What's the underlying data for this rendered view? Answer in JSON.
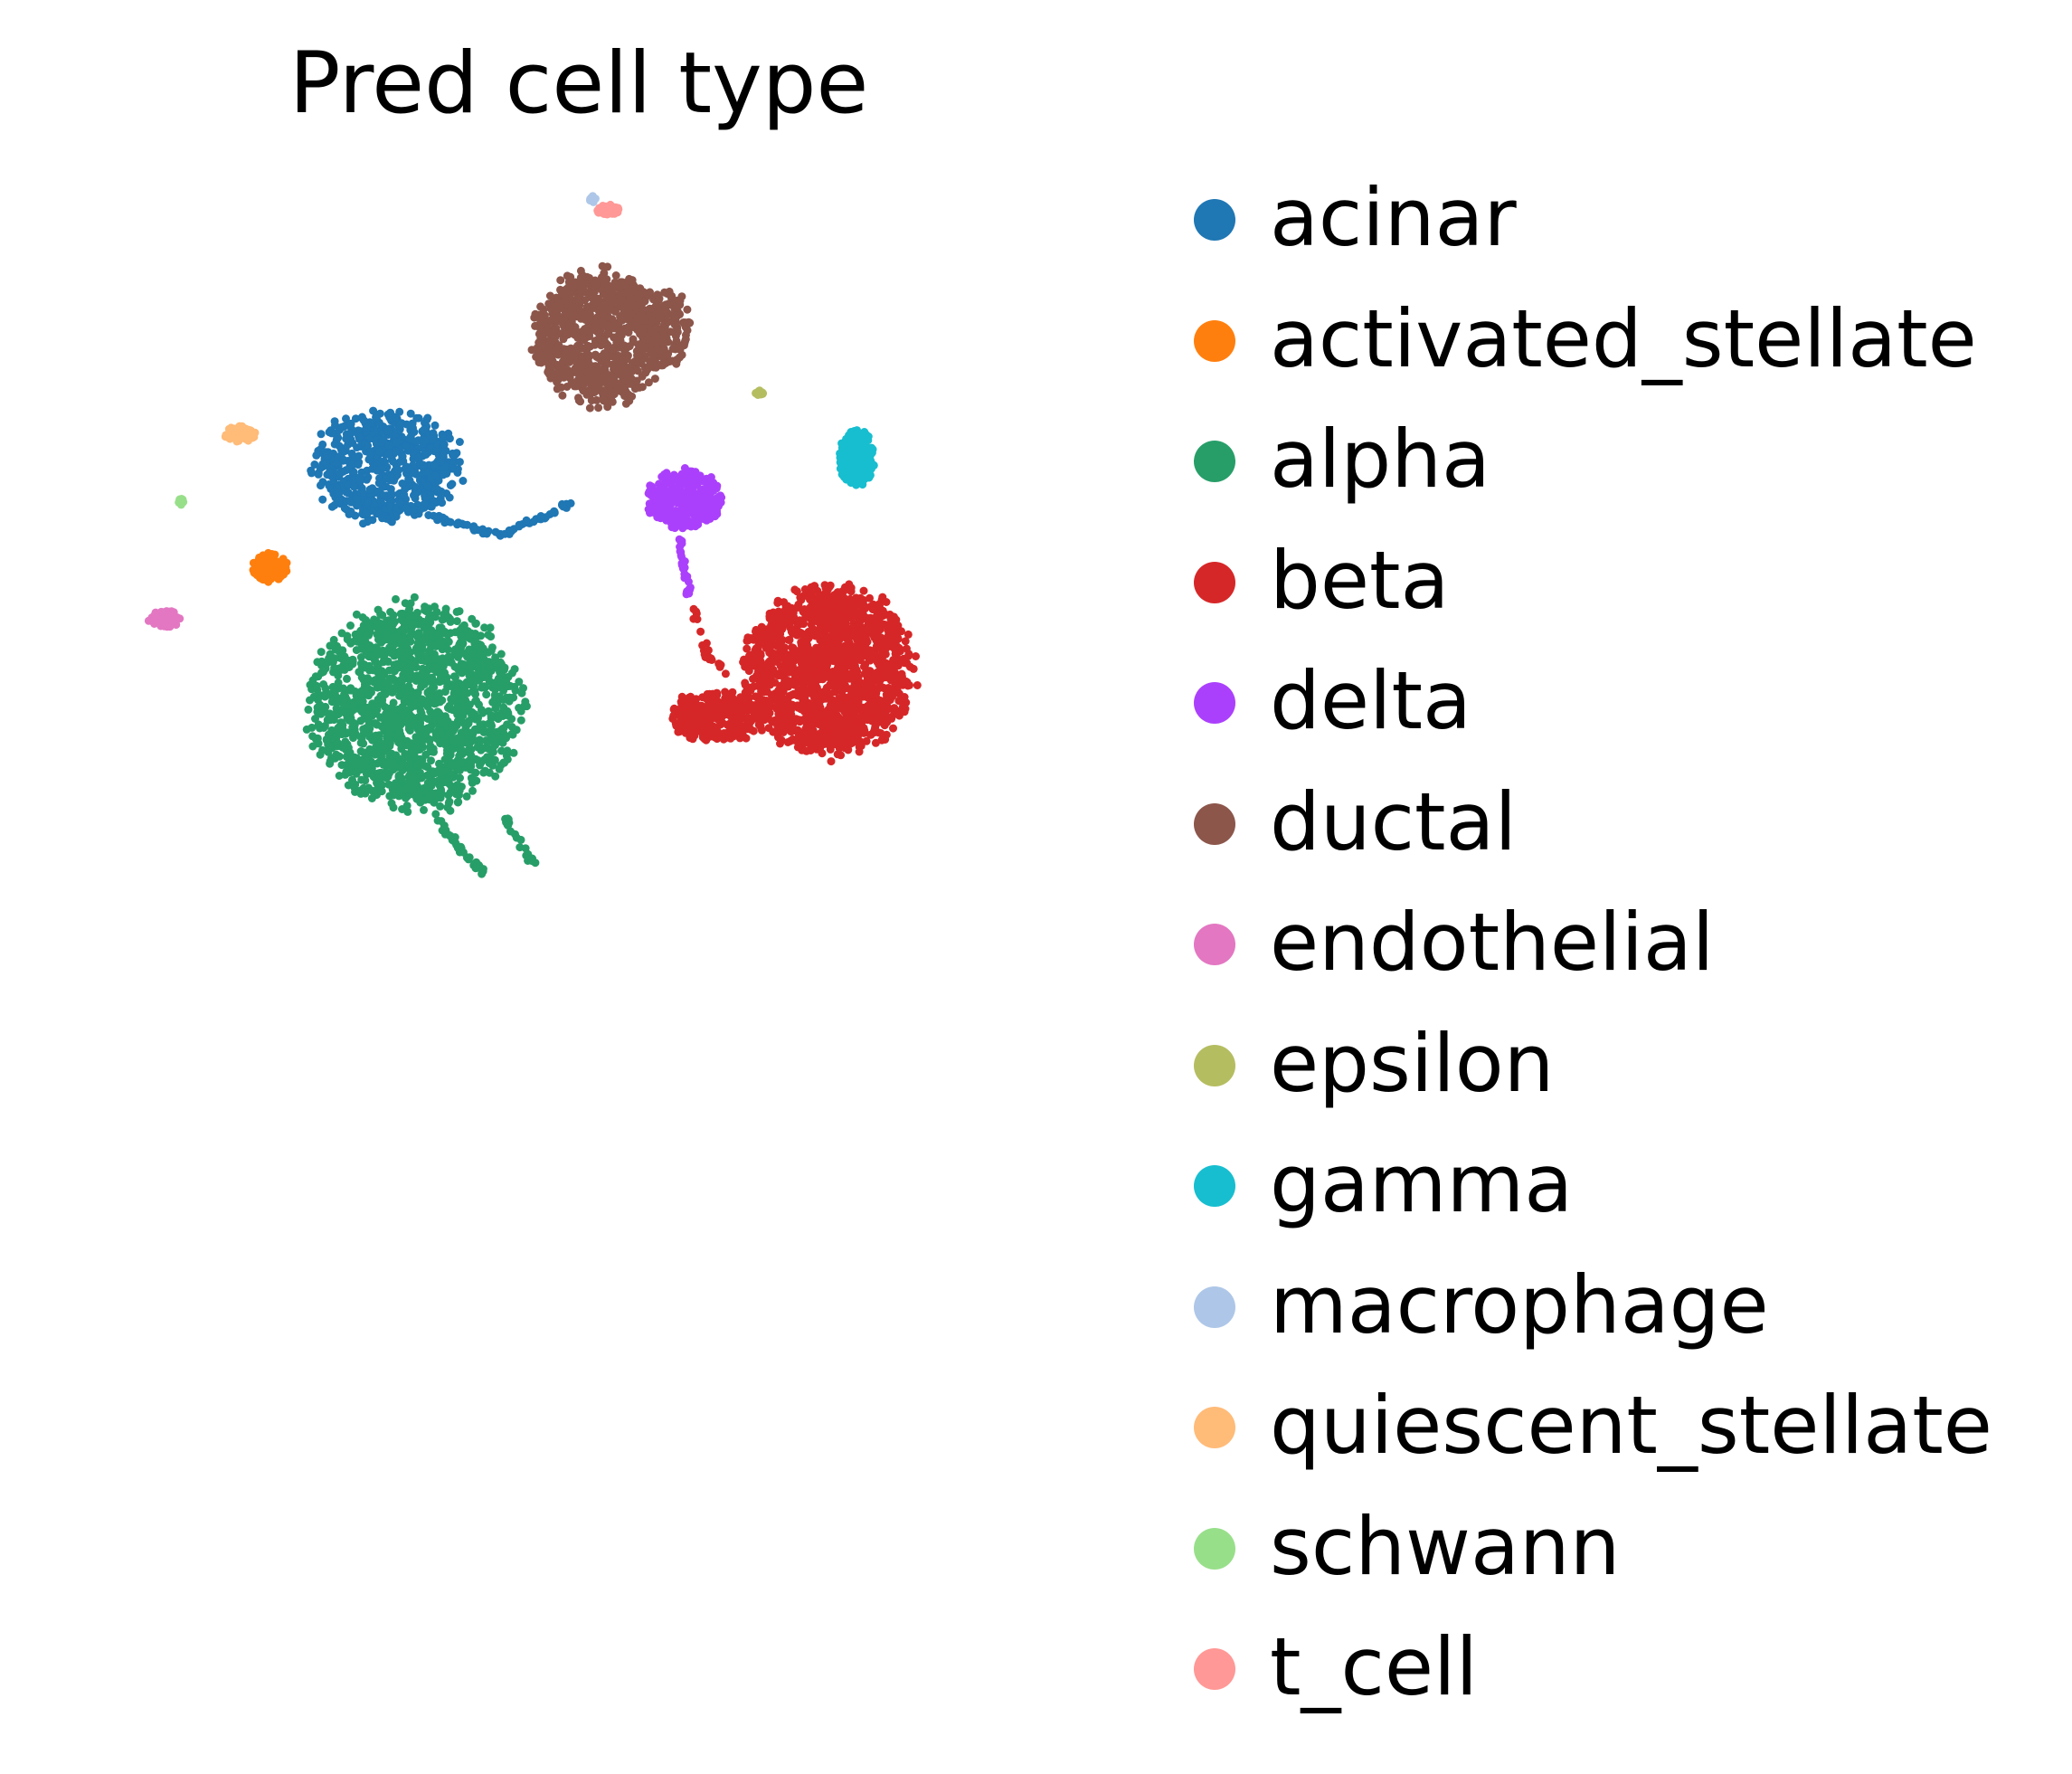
{
  "chart_data": {
    "type": "scatter",
    "title": "Pred cell type",
    "xlabel": "",
    "ylabel": "",
    "axes_visible": false,
    "grid": false,
    "legend_placement": "right",
    "xlim": [
      0,
      10
    ],
    "ylim": [
      0,
      10
    ],
    "series": [
      {
        "name": "acinar",
        "color": "#1f77b4",
        "clusters": [
          {
            "shape": "blob",
            "cx": 3.0,
            "cy": 7.1,
            "rx": 0.85,
            "ry": 0.65,
            "n": 650
          },
          {
            "shape": "arc",
            "points": [
              [
                3.5,
                6.55
              ],
              [
                4.2,
                6.35
              ],
              [
                4.9,
                6.7
              ]
            ],
            "n": 60
          }
        ]
      },
      {
        "name": "activated_stellate",
        "color": "#ff7f0e",
        "clusters": [
          {
            "shape": "blob",
            "cx": 1.78,
            "cy": 6.0,
            "rx": 0.2,
            "ry": 0.17,
            "n": 120
          }
        ]
      },
      {
        "name": "alpha",
        "color": "#279e68",
        "clusters": [
          {
            "shape": "blob",
            "cx": 3.3,
            "cy": 4.5,
            "rx": 1.2,
            "ry": 1.2,
            "n": 1600
          },
          {
            "shape": "arc",
            "points": [
              [
                3.5,
                3.3
              ],
              [
                3.8,
                2.9
              ],
              [
                4.0,
                2.7
              ]
            ],
            "n": 40
          },
          {
            "shape": "arc",
            "points": [
              [
                4.2,
                3.35
              ],
              [
                4.55,
                2.75
              ]
            ],
            "n": 20
          }
        ]
      },
      {
        "name": "beta",
        "color": "#d62728",
        "clusters": [
          {
            "shape": "blob",
            "cx": 7.6,
            "cy": 4.9,
            "rx": 0.95,
            "ry": 1.0,
            "n": 1500
          },
          {
            "shape": "blob",
            "cx": 6.45,
            "cy": 4.4,
            "rx": 0.55,
            "ry": 0.3,
            "n": 300
          },
          {
            "shape": "arc",
            "points": [
              [
                6.2,
                5.55
              ],
              [
                6.35,
                5.05
              ],
              [
                6.55,
                4.85
              ]
            ],
            "n": 25
          }
        ]
      },
      {
        "name": "delta",
        "color": "#ab40fc",
        "clusters": [
          {
            "shape": "blob",
            "cx": 6.1,
            "cy": 6.75,
            "rx": 0.42,
            "ry": 0.35,
            "n": 350
          },
          {
            "shape": "arc",
            "points": [
              [
                6.05,
                6.35
              ],
              [
                6.1,
                6.0
              ],
              [
                6.15,
                5.7
              ]
            ],
            "n": 30
          }
        ]
      },
      {
        "name": "ductal",
        "color": "#8c564b",
        "clusters": [
          {
            "shape": "blob",
            "cx": 5.2,
            "cy": 8.5,
            "rx": 0.75,
            "ry": 0.8,
            "n": 800
          },
          {
            "shape": "blob",
            "cx": 5.9,
            "cy": 8.6,
            "rx": 0.28,
            "ry": 0.48,
            "n": 150
          }
        ]
      },
      {
        "name": "endothelial",
        "color": "#e377c2",
        "clusters": [
          {
            "shape": "blob",
            "cx": 0.68,
            "cy": 5.45,
            "rx": 0.18,
            "ry": 0.1,
            "n": 80
          }
        ]
      },
      {
        "name": "epsilon",
        "color": "#b5bd61",
        "clusters": [
          {
            "shape": "blob",
            "cx": 6.88,
            "cy": 7.9,
            "rx": 0.05,
            "ry": 0.03,
            "n": 12
          }
        ]
      },
      {
        "name": "gamma",
        "color": "#17becf",
        "clusters": [
          {
            "shape": "blob",
            "cx": 7.9,
            "cy": 7.2,
            "rx": 0.2,
            "ry": 0.33,
            "n": 220
          }
        ]
      },
      {
        "name": "macrophage",
        "color": "#aec7e8",
        "clusters": [
          {
            "shape": "blob",
            "cx": 5.15,
            "cy": 10.0,
            "rx": 0.04,
            "ry": 0.04,
            "n": 8
          }
        ]
      },
      {
        "name": "quiescent_stellate",
        "color": "#ffbb78",
        "clusters": [
          {
            "shape": "blob",
            "cx": 1.46,
            "cy": 7.45,
            "rx": 0.18,
            "ry": 0.1,
            "n": 80
          }
        ]
      },
      {
        "name": "schwann",
        "color": "#98df8a",
        "clusters": [
          {
            "shape": "blob",
            "cx": 0.85,
            "cy": 6.72,
            "rx": 0.03,
            "ry": 0.04,
            "n": 10
          }
        ]
      },
      {
        "name": "t_cell",
        "color": "#ff9896",
        "clusters": [
          {
            "shape": "blob",
            "cx": 5.3,
            "cy": 9.88,
            "rx": 0.13,
            "ry": 0.06,
            "n": 45
          }
        ]
      }
    ]
  }
}
